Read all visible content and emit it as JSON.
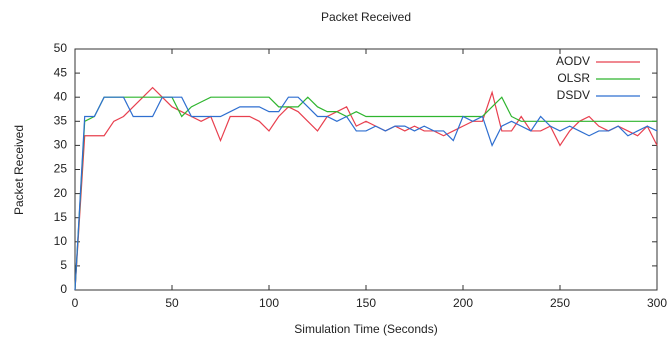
{
  "chart_data": {
    "type": "line",
    "title": "Packet Received",
    "x_label": "Simulation Time (Seconds)",
    "y_label": "Packet Received",
    "x": [
      0,
      5,
      10,
      15,
      20,
      25,
      30,
      35,
      40,
      45,
      50,
      55,
      60,
      65,
      70,
      75,
      80,
      85,
      90,
      95,
      100,
      105,
      110,
      115,
      120,
      125,
      130,
      135,
      140,
      145,
      150,
      155,
      160,
      165,
      170,
      175,
      180,
      185,
      190,
      195,
      200,
      205,
      210,
      215,
      220,
      225,
      230,
      235,
      240,
      245,
      250,
      255,
      260,
      265,
      270,
      275,
      280,
      285,
      290,
      295,
      300
    ],
    "series": [
      {
        "name": "AODV",
        "color": "#e8404f",
        "values": [
          0,
          32,
          32,
          32,
          35,
          36,
          38,
          40,
          42,
          40,
          38,
          37,
          36,
          35,
          36,
          31,
          36,
          36,
          36,
          35,
          33,
          36,
          38,
          37,
          35,
          33,
          36,
          37,
          38,
          34,
          35,
          34,
          33,
          34,
          33,
          34,
          33,
          33,
          32,
          33,
          34,
          35,
          35,
          41,
          33,
          33,
          36,
          33,
          33,
          34,
          30,
          33,
          35,
          36,
          34,
          33,
          34,
          33,
          32,
          34,
          30
        ]
      },
      {
        "name": "OLSR",
        "color": "#2fb52f",
        "values": [
          0,
          35,
          36,
          40,
          40,
          40,
          40,
          40,
          40,
          40,
          40,
          36,
          38,
          39,
          40,
          40,
          40,
          40,
          40,
          40,
          40,
          38,
          38,
          38,
          40,
          38,
          37,
          37,
          36,
          37,
          36,
          36,
          36,
          36,
          36,
          36,
          36,
          36,
          36,
          36,
          36,
          36,
          36,
          38,
          40,
          36,
          35,
          35,
          35,
          35,
          35,
          35,
          35,
          35,
          35,
          35,
          35,
          35,
          35,
          35,
          35
        ]
      },
      {
        "name": "DSDV",
        "color": "#2f6fd0",
        "values": [
          0,
          36,
          36,
          40,
          40,
          40,
          36,
          36,
          36,
          40,
          40,
          40,
          36,
          36,
          36,
          36,
          37,
          38,
          38,
          38,
          37,
          37,
          40,
          40,
          38,
          36,
          36,
          35,
          36,
          33,
          33,
          34,
          33,
          34,
          34,
          33,
          34,
          33,
          33,
          31,
          36,
          35,
          36,
          30,
          34,
          35,
          34,
          33,
          36,
          34,
          33,
          34,
          33,
          32,
          33,
          33,
          34,
          32,
          33,
          34,
          33
        ]
      }
    ],
    "xlim": [
      0,
      300
    ],
    "xticks": [
      0,
      50,
      100,
      150,
      200,
      250,
      300
    ],
    "ylim": [
      0,
      50
    ],
    "yticks": [
      0,
      5,
      10,
      15,
      20,
      25,
      30,
      35,
      40,
      45,
      50
    ],
    "legend": "upper right"
  }
}
